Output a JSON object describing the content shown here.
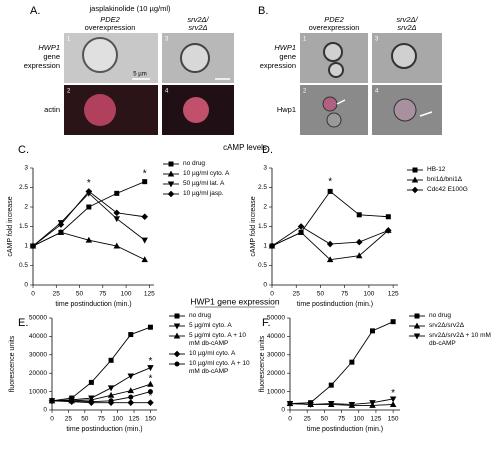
{
  "panels": {
    "A": {
      "label": "A.",
      "title": "jasplakinolide (10 µg/ml)",
      "columns": [
        [
          "PDE2",
          "overexpression"
        ],
        [
          "srv2Δ/",
          "srv2Δ"
        ]
      ],
      "rows": [
        [
          "HWP1",
          "gene",
          "expression"
        ],
        [
          "actin"
        ]
      ],
      "image_numbers": [
        "1",
        "2",
        "3",
        "4"
      ],
      "scale": "5 µm"
    },
    "B": {
      "label": "B.",
      "columns": [
        [
          "PDE2",
          "overexpression"
        ],
        [
          "srv2Δ/",
          "srv2Δ"
        ]
      ],
      "rows": [
        [
          "HWP1",
          "gene",
          "expression"
        ],
        [
          "Hwp1"
        ]
      ],
      "image_numbers": [
        "1",
        "2",
        "3",
        "4"
      ]
    },
    "C": {
      "label": "C."
    },
    "D": {
      "label": "D."
    },
    "E": {
      "label": "E."
    },
    "F": {
      "label": "F."
    },
    "section_titles": [
      "cAMP levels",
      "HWP1 gene expression"
    ]
  },
  "chart_data": [
    {
      "type": "line",
      "xlabel": "time postinduction (min.)",
      "ylabel": "cAMP fold increase",
      "x": [
        0,
        30,
        60,
        90,
        120
      ],
      "xlim": [
        0,
        130
      ],
      "xticks": [
        0,
        25,
        50,
        75,
        100,
        125
      ],
      "ylim": [
        0,
        3
      ],
      "yticks": [
        0,
        0.5,
        1,
        1.5,
        2,
        2.5,
        3
      ],
      "series": [
        {
          "name": "no drug",
          "color": "#000000",
          "marker": "square",
          "values": [
            1,
            1.35,
            2.0,
            2.35,
            2.65
          ]
        },
        {
          "name": "10 µg/ml cyto. A",
          "color": "#000000",
          "marker": "triangle",
          "values": [
            1,
            1.35,
            1.15,
            1.0,
            0.65
          ]
        },
        {
          "name": "50 µg/ml lat. A",
          "color": "#000000",
          "marker": "triangle-down",
          "values": [
            1,
            1.6,
            2.35,
            1.7,
            1.15
          ]
        },
        {
          "name": "10 µg/ml jasp.",
          "color": "#000000",
          "marker": "diamond",
          "values": [
            1,
            1.55,
            2.4,
            1.85,
            1.75
          ]
        }
      ],
      "annotations": [
        {
          "text": "*",
          "x": 60,
          "y": 2.6
        },
        {
          "text": "*",
          "x": 120,
          "y": 2.85
        }
      ]
    },
    {
      "type": "line",
      "xlabel": "time postinduction (min.)",
      "ylabel": "cAMP fold increase",
      "x": [
        0,
        30,
        60,
        90,
        120
      ],
      "xlim": [
        0,
        130
      ],
      "xticks": [
        0,
        25,
        50,
        75,
        100,
        125
      ],
      "ylim": [
        0,
        3
      ],
      "yticks": [
        0,
        0.5,
        1,
        1.5,
        2,
        2.5,
        3
      ],
      "series": [
        {
          "name": "HB-12",
          "color": "#000000",
          "marker": "square",
          "values": [
            1,
            1.35,
            2.4,
            1.8,
            1.75
          ]
        },
        {
          "name": "bni1Δ/bni1Δ",
          "color": "#000000",
          "marker": "triangle",
          "values": [
            1,
            1.35,
            0.65,
            0.75,
            1.4
          ]
        },
        {
          "name": "Cdc42 E100G",
          "color": "#000000",
          "marker": "diamond",
          "values": [
            1,
            1.5,
            1.05,
            1.1,
            1.4
          ]
        }
      ],
      "annotations": [
        {
          "text": "*",
          "x": 60,
          "y": 2.65
        }
      ]
    },
    {
      "type": "line",
      "xlabel": "time postinduction (min.)",
      "ylabel": "fluorescence units",
      "x": [
        0,
        30,
        60,
        90,
        120,
        150
      ],
      "xlim": [
        0,
        160
      ],
      "xticks": [
        0,
        25,
        50,
        75,
        100,
        125,
        150
      ],
      "ylim": [
        0,
        50000
      ],
      "yticks": [
        0,
        10000,
        20000,
        30000,
        40000,
        50000
      ],
      "series": [
        {
          "name": "no drug",
          "color": "#000000",
          "marker": "square",
          "values": [
            5000,
            6500,
            15000,
            27000,
            41000,
            45000
          ]
        },
        {
          "name": "5 µg/ml cyto. A",
          "color": "#000000",
          "marker": "triangle-down",
          "values": [
            5000,
            5500,
            6500,
            12000,
            18500,
            23000
          ]
        },
        {
          "name": "5 µg/ml cyto. A + 10 mM db-cAMP",
          "color": "#000000",
          "marker": "triangle",
          "values": [
            5000,
            5000,
            5500,
            8000,
            10500,
            14000
          ]
        },
        {
          "name": "10 µg/ml cyto. A",
          "color": "#000000",
          "marker": "diamond",
          "values": [
            5000,
            4500,
            4000,
            4000,
            4000,
            4000
          ]
        },
        {
          "name": "10 µg/ml cyto. A + 10 mM db-cAMP",
          "color": "#000000",
          "marker": "circle",
          "values": [
            5000,
            5000,
            4500,
            5000,
            7000,
            10000
          ]
        }
      ],
      "annotations": [
        {
          "text": "*",
          "x": 150,
          "y": 26500
        },
        {
          "text": "*",
          "x": 150,
          "y": 17000
        },
        {
          "text": "*",
          "x": 150,
          "y": 12500
        },
        {
          "text": "*",
          "x": 150,
          "y": 7500
        }
      ]
    },
    {
      "type": "line",
      "xlabel": "time postinduction (min.)",
      "ylabel": "fluorescence units",
      "x": [
        0,
        30,
        60,
        90,
        120,
        150
      ],
      "xlim": [
        0,
        160
      ],
      "xticks": [
        0,
        25,
        50,
        75,
        100,
        125,
        150
      ],
      "ylim": [
        0,
        50000
      ],
      "yticks": [
        0,
        10000,
        20000,
        30000,
        40000,
        50000
      ],
      "series": [
        {
          "name": "no drug",
          "color": "#000000",
          "marker": "square",
          "values": [
            3500,
            4000,
            13500,
            26000,
            43000,
            48000
          ]
        },
        {
          "name": "srv2Δ/srv2Δ",
          "color": "#000000",
          "marker": "triangle",
          "values": [
            3500,
            3000,
            3000,
            2500,
            2500,
            3000
          ]
        },
        {
          "name": "srv2Δ/srv2Δ + 10 mM db-cAMP",
          "color": "#000000",
          "marker": "triangle-down",
          "values": [
            3500,
            3000,
            3500,
            3000,
            4000,
            6000
          ]
        }
      ],
      "annotations": [
        {
          "text": "*",
          "x": 150,
          "y": 9000
        }
      ]
    }
  ]
}
